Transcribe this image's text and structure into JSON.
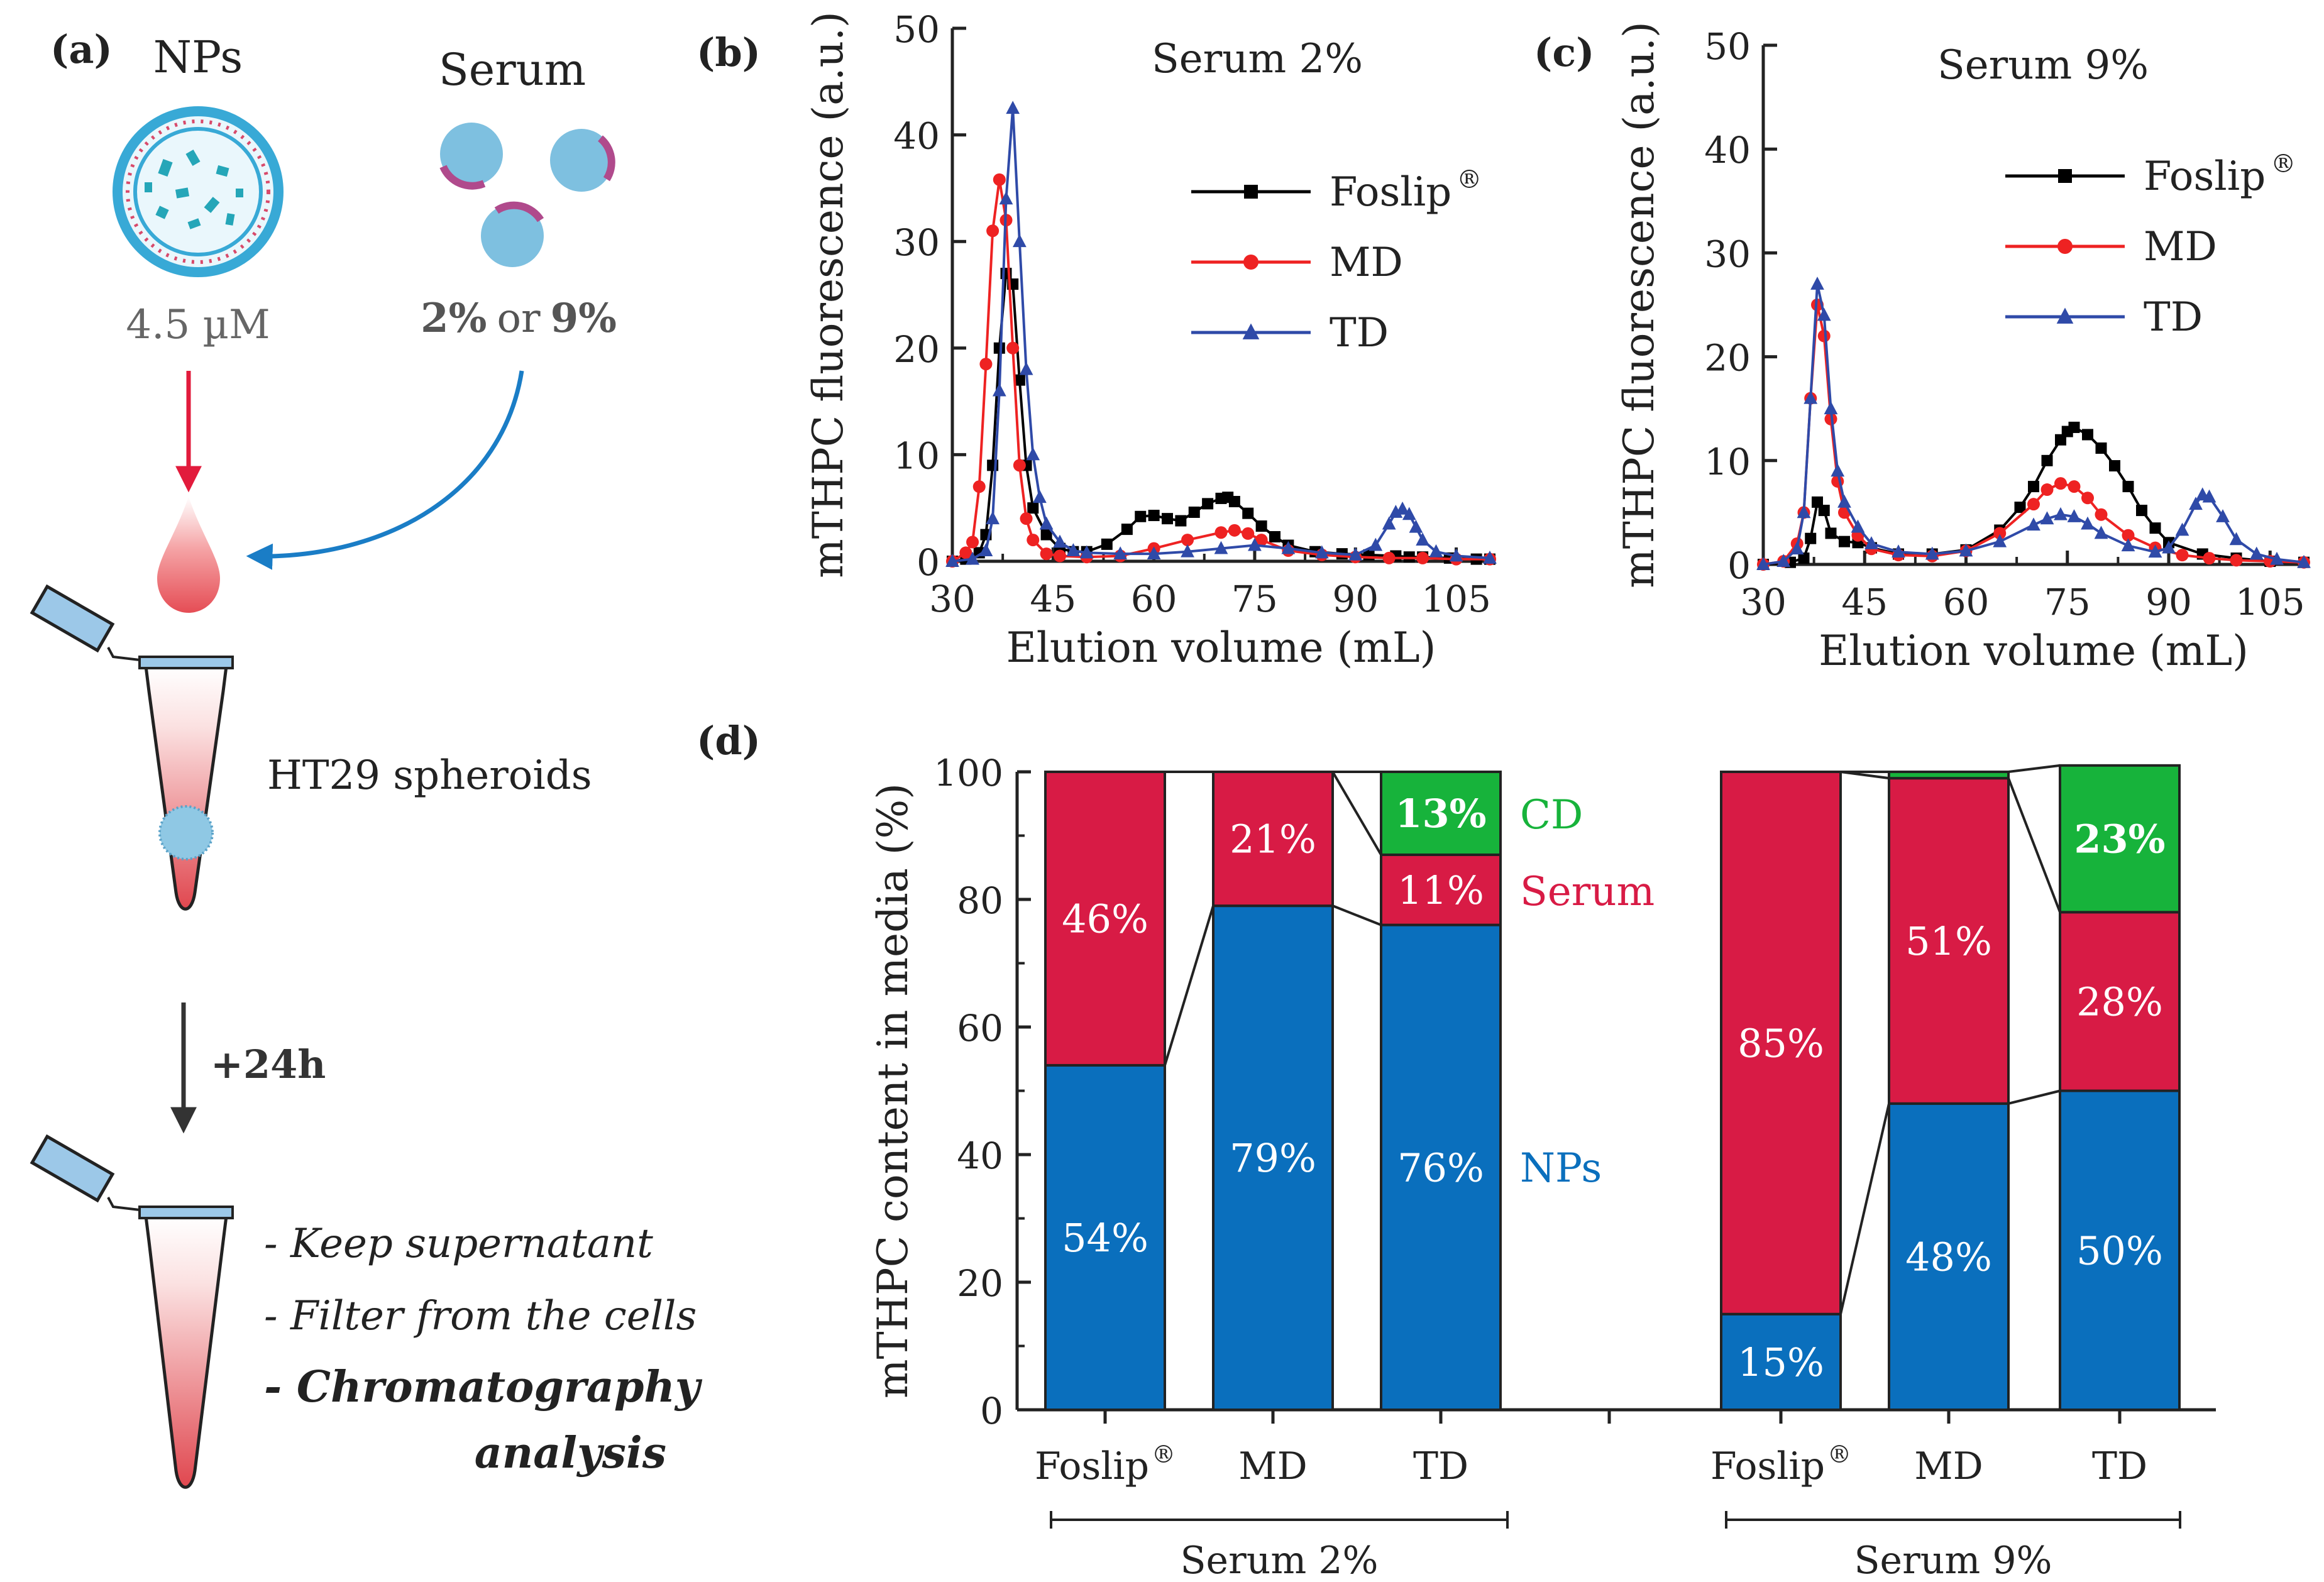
{
  "colors": {
    "foslip": "#000000",
    "md": "#ee2222",
    "td": "#2f4aa8",
    "nps": "#0a6fbd",
    "serum": "#d81b45",
    "cd": "#17b33b",
    "drop": "#e8585d",
    "arrow_red": "#e21b3c",
    "arrow_blue": "#1a7dc6",
    "np_shell": "#38a9d6"
  },
  "panel_a": {
    "label": "(a)",
    "nps_title": "NPs",
    "serum_title": "Serum",
    "nps_conc": "4.5 µM",
    "serum_conc_1": "2%",
    "serum_conc_or": "or",
    "serum_conc_2": "9%",
    "spheroids_label": "HT29 spheroids",
    "incubation_label": "+24h",
    "step_1": "- Keep supernatant",
    "step_2": "- Filter from the cells",
    "step_3a": "- Chromatography",
    "step_3b": "analysis"
  },
  "chart_data": [
    {
      "id": "b",
      "label": "(b)",
      "type": "line",
      "title": "Serum 2%",
      "xlabel": "Elution volume (mL)",
      "ylabel": "mTHPC fluorescence (a.u.)",
      "xlim": [
        30,
        110
      ],
      "ylim": [
        0,
        50
      ],
      "xticks": [
        30,
        45,
        60,
        75,
        90,
        105
      ],
      "yticks": [
        0,
        10,
        20,
        30,
        40,
        50
      ],
      "legend_position": "right",
      "series": [
        {
          "name": "Foslip",
          "name_sup": "®",
          "key": "foslip",
          "marker": "square",
          "x": [
            30,
            32,
            34,
            35,
            36,
            37,
            38,
            39,
            40,
            41,
            42,
            44,
            46,
            48,
            50,
            53,
            56,
            58,
            60,
            62,
            64,
            66,
            68,
            70,
            71,
            72,
            74,
            76,
            78,
            80,
            84,
            88,
            92,
            96,
            98,
            100,
            104,
            108,
            110
          ],
          "y": [
            0,
            0.2,
            0.8,
            2.5,
            9,
            20,
            27,
            26,
            17,
            9,
            5,
            2.5,
            1.2,
            0.9,
            0.9,
            1.6,
            3,
            4.2,
            4.3,
            4,
            3.8,
            4.6,
            5.4,
            5.9,
            6,
            5.6,
            4.5,
            3.3,
            2.3,
            1.5,
            0.9,
            0.7,
            0.6,
            0.5,
            0.4,
            0.4,
            0.3,
            0.2,
            0.2
          ]
        },
        {
          "name": "MD",
          "key": "md",
          "marker": "circle",
          "x": [
            30,
            32,
            33,
            34,
            35,
            36,
            37,
            38,
            39,
            40,
            41,
            42,
            44,
            46,
            50,
            55,
            60,
            65,
            70,
            72,
            74,
            76,
            80,
            85,
            90,
            95,
            100,
            105,
            110
          ],
          "y": [
            0,
            0.8,
            1.8,
            7,
            18.5,
            31,
            35.8,
            32,
            20,
            9,
            4,
            2,
            0.7,
            0.5,
            0.4,
            0.5,
            1.2,
            2,
            2.7,
            2.9,
            2.6,
            2,
            1,
            0.6,
            0.4,
            0.3,
            0.3,
            0.2,
            0.2
          ]
        },
        {
          "name": "TD",
          "key": "td",
          "marker": "triangle",
          "x": [
            30,
            33,
            35,
            36,
            37,
            38,
            39,
            40,
            41,
            42,
            43,
            44,
            46,
            48,
            50,
            55,
            60,
            65,
            70,
            75,
            80,
            85,
            90,
            93,
            95,
            96,
            97,
            98,
            99,
            100,
            102,
            105,
            110
          ],
          "y": [
            0,
            0.2,
            1,
            4,
            16,
            34,
            42.5,
            30,
            18,
            10,
            6,
            3.5,
            1.8,
            1,
            0.8,
            0.7,
            0.7,
            0.9,
            1.2,
            1.5,
            1.2,
            0.8,
            0.6,
            1.5,
            3.5,
            4.6,
            4.9,
            4.4,
            3.2,
            2,
            0.9,
            0.5,
            0.3
          ]
        }
      ]
    },
    {
      "id": "c",
      "label": "(c)",
      "type": "line",
      "title": "Serum 9%",
      "xlabel": "Elution volume (mL)",
      "ylabel": "mTHPC fluorescence (a.u.)",
      "xlim": [
        30,
        110
      ],
      "ylim": [
        0,
        50
      ],
      "xticks": [
        30,
        45,
        60,
        75,
        90,
        105
      ],
      "yticks": [
        0,
        10,
        20,
        30,
        40,
        50
      ],
      "legend_position": "right",
      "series": [
        {
          "name": "Foslip",
          "name_sup": "®",
          "key": "foslip",
          "marker": "square",
          "x": [
            30,
            34,
            36,
            37,
            38,
            39,
            40,
            42,
            44,
            46,
            50,
            55,
            60,
            65,
            68,
            70,
            72,
            74,
            75,
            76,
            78,
            80,
            82,
            84,
            86,
            88,
            90,
            95,
            100,
            105,
            110
          ],
          "y": [
            0,
            0.2,
            0.6,
            2.5,
            6,
            5.2,
            3,
            2.2,
            2.1,
            1.6,
            1,
            1,
            1.4,
            3.3,
            5.5,
            7.5,
            10,
            12,
            12.8,
            13.2,
            12.5,
            11.2,
            9.5,
            7.5,
            5.2,
            3.5,
            2.1,
            1,
            0.6,
            0.3,
            0.2
          ]
        },
        {
          "name": "MD",
          "key": "md",
          "marker": "circle",
          "x": [
            30,
            33,
            35,
            36,
            37,
            38,
            39,
            40,
            41,
            42,
            44,
            46,
            50,
            55,
            60,
            65,
            70,
            72,
            74,
            76,
            78,
            80,
            84,
            88,
            92,
            96,
            100,
            105,
            110
          ],
          "y": [
            0,
            0.3,
            2,
            5,
            16,
            25,
            22,
            14,
            8,
            5,
            2.8,
            1.5,
            0.9,
            0.8,
            1.3,
            3,
            5.8,
            7.2,
            7.8,
            7.5,
            6.4,
            4.8,
            2.8,
            1.6,
            0.9,
            0.6,
            0.4,
            0.3,
            0.2
          ]
        },
        {
          "name": "TD",
          "key": "td",
          "marker": "triangle",
          "x": [
            30,
            33,
            35,
            36,
            37,
            38,
            39,
            40,
            41,
            42,
            44,
            46,
            50,
            55,
            60,
            65,
            70,
            72,
            74,
            76,
            78,
            80,
            84,
            88,
            90,
            92,
            94,
            95,
            96,
            98,
            100,
            103,
            106,
            110
          ],
          "y": [
            0,
            0.3,
            1.5,
            5,
            16,
            27,
            24,
            15,
            9,
            6,
            3.6,
            2,
            1.2,
            1,
            1.3,
            2.2,
            3.8,
            4.4,
            4.8,
            4.6,
            3.9,
            3,
            1.8,
            1.2,
            1.6,
            3.3,
            5.8,
            6.7,
            6.5,
            4.6,
            2.4,
            1,
            0.5,
            0.2
          ]
        }
      ]
    },
    {
      "id": "d",
      "label": "(d)",
      "type": "bar",
      "stacked": true,
      "ylabel": "mTHPC content in media (%)",
      "ylim": [
        0,
        100
      ],
      "yticks": [
        0,
        20,
        40,
        60,
        80,
        100
      ],
      "component_labels": {
        "nps": "NPs",
        "serum": "Serum",
        "cd": "CD"
      },
      "groups": [
        {
          "name": "Serum 2%",
          "bars": [
            {
              "category": "Foslip",
              "sup": "®",
              "nps": 54,
              "serum": 46,
              "cd": 0,
              "nps_label": "54%",
              "serum_label": "46%",
              "cd_label": ""
            },
            {
              "category": "MD",
              "sup": "",
              "nps": 79,
              "serum": 21,
              "cd": 0,
              "nps_label": "79%",
              "serum_label": "21%",
              "cd_label": ""
            },
            {
              "category": "TD",
              "sup": "",
              "nps": 76,
              "serum": 11,
              "cd": 13,
              "nps_label": "76%",
              "serum_label": "11%",
              "cd_label": "13%"
            }
          ]
        },
        {
          "name": "Serum 9%",
          "bars": [
            {
              "category": "Foslip",
              "sup": "®",
              "nps": 15,
              "serum": 85,
              "cd": 0,
              "nps_label": "15%",
              "serum_label": "85%",
              "cd_label": ""
            },
            {
              "category": "MD",
              "sup": "",
              "nps": 48,
              "serum": 51,
              "cd": 1,
              "nps_label": "48%",
              "serum_label": "51%",
              "cd_label": ""
            },
            {
              "category": "TD",
              "sup": "",
              "nps": 50,
              "serum": 28,
              "cd": 23,
              "nps_label": "50%",
              "serum_label": "28%",
              "cd_label": "23%"
            }
          ]
        }
      ]
    }
  ]
}
